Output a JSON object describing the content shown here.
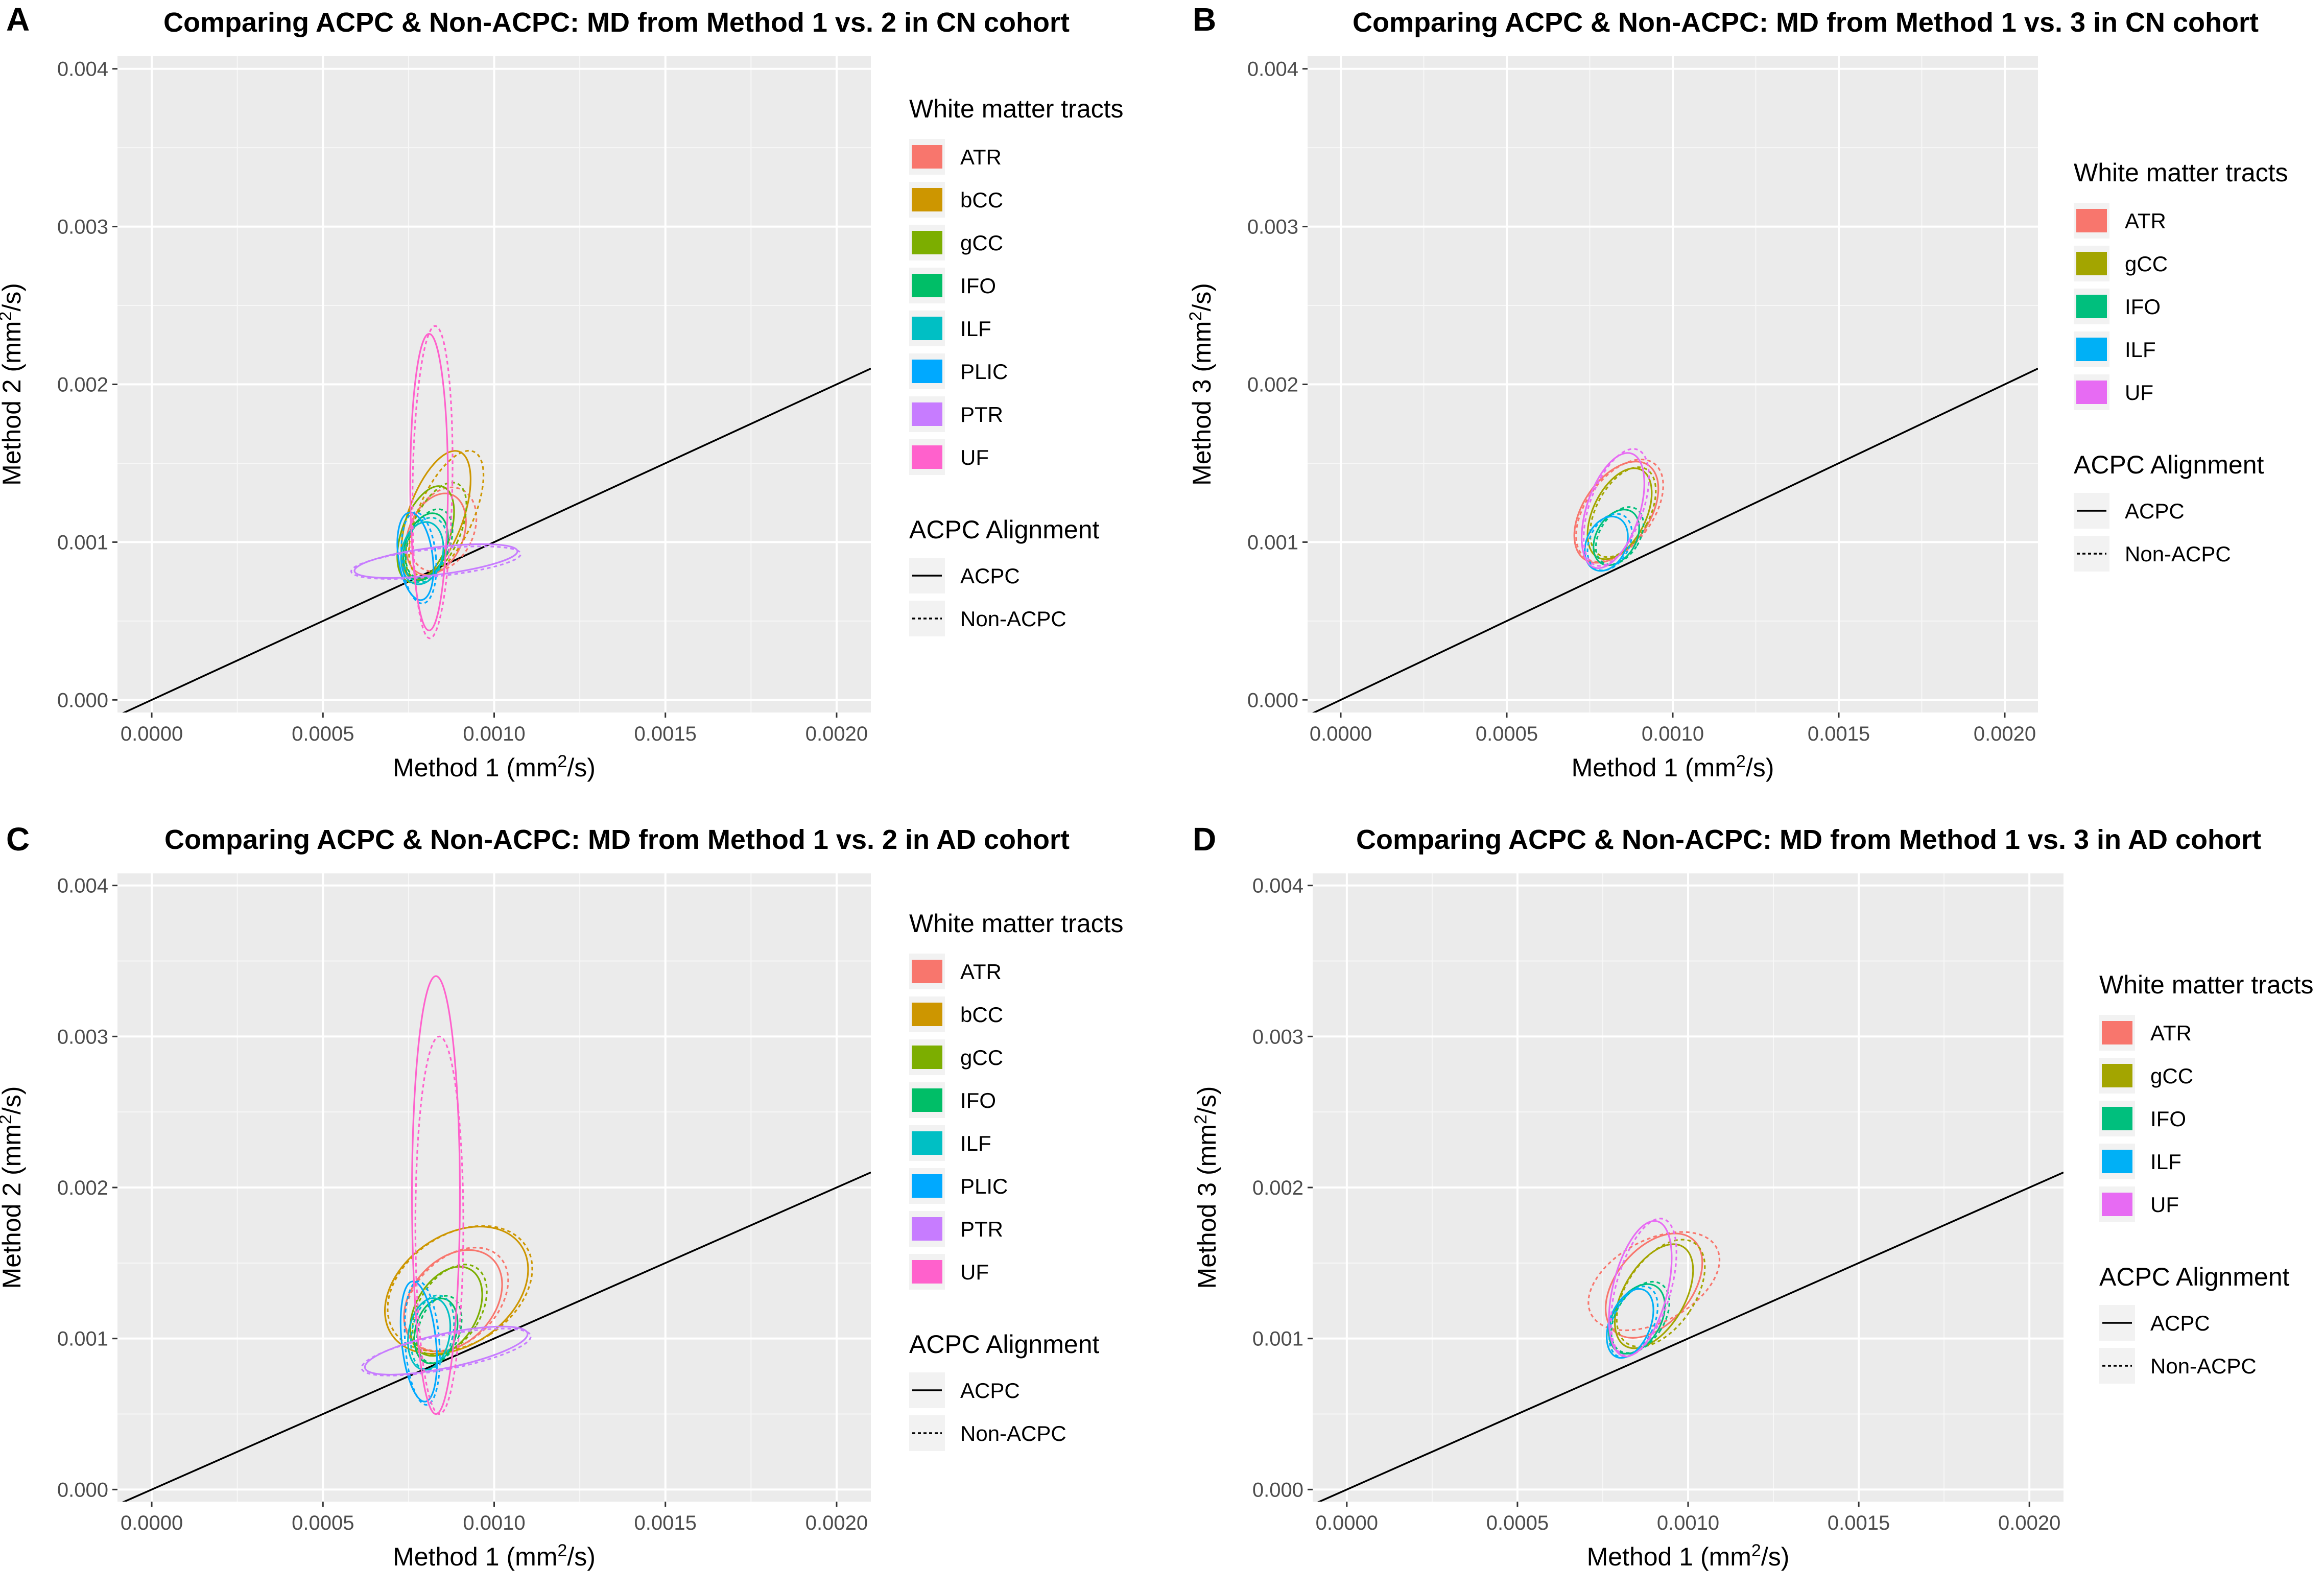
{
  "chart_data": [
    {
      "panel": "A",
      "type": "scatter",
      "title": "Comparing ACPC & Non-ACPC: MD from Method 1 vs. 2 in CN cohort",
      "xlabel": "Method 1",
      "ylabel": "Method 2",
      "unit_base": "mm",
      "unit_sup": "2",
      "unit_tail": "/s",
      "xlim": [
        -0.0001,
        0.0021
      ],
      "ylim": [
        -8e-05,
        0.00408
      ],
      "xticks": [
        "0.0000",
        "0.0005",
        "0.0010",
        "0.0015",
        "0.0020"
      ],
      "yticks": [
        "0.000",
        "0.001",
        "0.002",
        "0.003",
        "0.004"
      ],
      "identity_line": {
        "slope": 1,
        "intercept": 0
      },
      "legend_title": "White matter tracts",
      "legend_items": [
        {
          "label": "ATR",
          "color": "#F8766D"
        },
        {
          "label": "bCC",
          "color": "#CD9600"
        },
        {
          "label": "gCC",
          "color": "#7CAE00"
        },
        {
          "label": "IFO",
          "color": "#00BE67"
        },
        {
          "label": "ILF",
          "color": "#00BFC4"
        },
        {
          "label": "PLIC",
          "color": "#00A9FF"
        },
        {
          "label": "PTR",
          "color": "#C77CFF"
        },
        {
          "label": "UF",
          "color": "#FF61CC"
        }
      ],
      "linetype_title": "ACPC Alignment",
      "linetype_items": [
        "ACPC",
        "Non-ACPC"
      ],
      "ellipses": [
        {
          "tract": "ATR",
          "align": "ACPC",
          "cx": 0.00083,
          "cy": 0.00105,
          "rx": 8e-05,
          "ry": 0.00027,
          "angle": 22
        },
        {
          "tract": "ATR",
          "align": "Non-ACPC",
          "cx": 0.00085,
          "cy": 0.00108,
          "rx": 9e-05,
          "ry": 0.00028,
          "angle": 25
        },
        {
          "tract": "bCC",
          "align": "ACPC",
          "cx": 0.00083,
          "cy": 0.00117,
          "rx": 8e-05,
          "ry": 0.00043,
          "angle": 20
        },
        {
          "tract": "bCC",
          "align": "Non-ACPC",
          "cx": 0.00086,
          "cy": 0.00118,
          "rx": 8e-05,
          "ry": 0.00043,
          "angle": 24
        },
        {
          "tract": "gCC",
          "align": "ACPC",
          "cx": 0.0008,
          "cy": 0.00105,
          "rx": 7e-05,
          "ry": 0.00032,
          "angle": 20
        },
        {
          "tract": "gCC",
          "align": "Non-ACPC",
          "cx": 0.00083,
          "cy": 0.00107,
          "rx": 7e-05,
          "ry": 0.00033,
          "angle": 24
        },
        {
          "tract": "IFO",
          "align": "ACPC",
          "cx": 0.0008,
          "cy": 0.00097,
          "rx": 6e-05,
          "ry": 0.00022,
          "angle": 18
        },
        {
          "tract": "IFO",
          "align": "Non-ACPC",
          "cx": 0.00081,
          "cy": 0.00099,
          "rx": 6e-05,
          "ry": 0.00023,
          "angle": 22
        },
        {
          "tract": "ILF",
          "align": "ACPC",
          "cx": 0.00079,
          "cy": 0.00093,
          "rx": 6e-05,
          "ry": 0.0002,
          "angle": 12
        },
        {
          "tract": "ILF",
          "align": "Non-ACPC",
          "cx": 0.0008,
          "cy": 0.00095,
          "rx": 6e-05,
          "ry": 0.00021,
          "angle": 16
        },
        {
          "tract": "PLIC",
          "align": "ACPC",
          "cx": 0.00077,
          "cy": 0.00091,
          "rx": 5e-05,
          "ry": 0.00028,
          "angle": -8
        },
        {
          "tract": "PLIC",
          "align": "Non-ACPC",
          "cx": 0.00078,
          "cy": 0.0009,
          "rx": 5e-05,
          "ry": 0.00029,
          "angle": -5
        },
        {
          "tract": "PTR",
          "align": "ACPC",
          "cx": 0.00083,
          "cy": 0.00088,
          "rx": 4e-05,
          "ry": 0.00052,
          "angle": 83
        },
        {
          "tract": "PTR",
          "align": "Non-ACPC",
          "cx": 0.00083,
          "cy": 0.00087,
          "rx": 4e-05,
          "ry": 0.00054,
          "angle": 84
        },
        {
          "tract": "UF",
          "align": "ACPC",
          "cx": 0.00081,
          "cy": 0.00138,
          "rx": 5.5e-05,
          "ry": 0.00094,
          "angle": 0
        },
        {
          "tract": "UF",
          "align": "Non-ACPC",
          "cx": 0.00082,
          "cy": 0.00138,
          "rx": 5.8e-05,
          "ry": 0.00099,
          "angle": 1
        }
      ]
    },
    {
      "panel": "B",
      "type": "scatter",
      "title": "Comparing ACPC & Non-ACPC: MD from Method 1 vs. 3 in CN cohort",
      "xlabel": "Method 1",
      "ylabel": "Method 3",
      "unit_base": "mm",
      "unit_sup": "2",
      "unit_tail": "/s",
      "xlim": [
        -0.0001,
        0.0021
      ],
      "ylim": [
        -8e-05,
        0.00408
      ],
      "xticks": [
        "0.0000",
        "0.0005",
        "0.0010",
        "0.0015",
        "0.0020"
      ],
      "yticks": [
        "0.000",
        "0.001",
        "0.002",
        "0.003",
        "0.004"
      ],
      "identity_line": {
        "slope": 1,
        "intercept": 0
      },
      "legend_title": "White matter tracts",
      "legend_items": [
        {
          "label": "ATR",
          "color": "#F8766D"
        },
        {
          "label": "gCC",
          "color": "#A3A500"
        },
        {
          "label": "IFO",
          "color": "#00BF7D"
        },
        {
          "label": "ILF",
          "color": "#00B0F6"
        },
        {
          "label": "UF",
          "color": "#E76BF3"
        }
      ],
      "linetype_title": "ACPC Alignment",
      "linetype_items": [
        "ACPC",
        "Non-ACPC"
      ],
      "ellipses": [
        {
          "tract": "ATR",
          "align": "ACPC",
          "cx": 0.00083,
          "cy": 0.00119,
          "rx": 0.0001,
          "ry": 0.00036,
          "angle": 34
        },
        {
          "tract": "ATR",
          "align": "Non-ACPC",
          "cx": 0.00084,
          "cy": 0.0012,
          "rx": 0.0001,
          "ry": 0.00037,
          "angle": 36
        },
        {
          "tract": "gCC",
          "align": "ACPC",
          "cx": 0.00084,
          "cy": 0.00118,
          "rx": 8e-05,
          "ry": 0.00031,
          "angle": 26
        },
        {
          "tract": "gCC",
          "align": "Non-ACPC",
          "cx": 0.00085,
          "cy": 0.00119,
          "rx": 8e-05,
          "ry": 0.00031,
          "angle": 28
        },
        {
          "tract": "IFO",
          "align": "ACPC",
          "cx": 0.00083,
          "cy": 0.00103,
          "rx": 6e-05,
          "ry": 0.00019,
          "angle": 30
        },
        {
          "tract": "IFO",
          "align": "Non-ACPC",
          "cx": 0.00084,
          "cy": 0.00104,
          "rx": 6e-05,
          "ry": 0.0002,
          "angle": 32
        },
        {
          "tract": "ILF",
          "align": "ACPC",
          "cx": 0.0008,
          "cy": 0.00099,
          "rx": 6e-05,
          "ry": 0.00018,
          "angle": 24
        },
        {
          "tract": "ILF",
          "align": "Non-ACPC",
          "cx": 0.00081,
          "cy": 0.001,
          "rx": 6e-05,
          "ry": 0.00019,
          "angle": 26
        },
        {
          "tract": "UF",
          "align": "ACPC",
          "cx": 0.00082,
          "cy": 0.0012,
          "rx": 8e-05,
          "ry": 0.00038,
          "angle": 18
        },
        {
          "tract": "UF",
          "align": "Non-ACPC",
          "cx": 0.00083,
          "cy": 0.00122,
          "rx": 8e-05,
          "ry": 0.00039,
          "angle": 20
        }
      ]
    },
    {
      "panel": "C",
      "type": "scatter",
      "title": "Comparing ACPC & Non-ACPC: MD from Method 1 vs. 2 in AD cohort",
      "xlabel": "Method 1",
      "ylabel": "Method 2",
      "unit_base": "mm",
      "unit_sup": "2",
      "unit_tail": "/s",
      "xlim": [
        -0.0001,
        0.0021
      ],
      "ylim": [
        -8e-05,
        0.00408
      ],
      "xticks": [
        "0.0000",
        "0.0005",
        "0.0010",
        "0.0015",
        "0.0020"
      ],
      "yticks": [
        "0.000",
        "0.001",
        "0.002",
        "0.003",
        "0.004"
      ],
      "identity_line": {
        "slope": 1,
        "intercept": 0
      },
      "legend_title": "White matter tracts",
      "legend_items": [
        {
          "label": "ATR",
          "color": "#F8766D"
        },
        {
          "label": "bCC",
          "color": "#CD9600"
        },
        {
          "label": "gCC",
          "color": "#7CAE00"
        },
        {
          "label": "IFO",
          "color": "#00BE67"
        },
        {
          "label": "ILF",
          "color": "#00BFC4"
        },
        {
          "label": "PLIC",
          "color": "#00A9FF"
        },
        {
          "label": "PTR",
          "color": "#C77CFF"
        },
        {
          "label": "UF",
          "color": "#FF61CC"
        }
      ],
      "linetype_title": "ACPC Alignment",
      "linetype_items": [
        "ACPC",
        "Non-ACPC"
      ],
      "ellipses": [
        {
          "tract": "ATR",
          "align": "ACPC",
          "cx": 0.00088,
          "cy": 0.00125,
          "rx": 0.00012,
          "ry": 0.00038,
          "angle": 42
        },
        {
          "tract": "ATR",
          "align": "Non-ACPC",
          "cx": 0.00089,
          "cy": 0.00126,
          "rx": 0.00012,
          "ry": 0.0004,
          "angle": 45
        },
        {
          "tract": "bCC",
          "align": "ACPC",
          "cx": 0.00089,
          "cy": 0.00132,
          "rx": 0.00016,
          "ry": 0.00052,
          "angle": 55
        },
        {
          "tract": "bCC",
          "align": "Non-ACPC",
          "cx": 0.0009,
          "cy": 0.00133,
          "rx": 0.00016,
          "ry": 0.00052,
          "angle": 57
        },
        {
          "tract": "gCC",
          "align": "ACPC",
          "cx": 0.00086,
          "cy": 0.00118,
          "rx": 9e-05,
          "ry": 0.00032,
          "angle": 30
        },
        {
          "tract": "gCC",
          "align": "Non-ACPC",
          "cx": 0.00087,
          "cy": 0.00119,
          "rx": 9e-05,
          "ry": 0.00033,
          "angle": 32
        },
        {
          "tract": "IFO",
          "align": "ACPC",
          "cx": 0.00083,
          "cy": 0.00105,
          "rx": 6e-05,
          "ry": 0.00022,
          "angle": 15
        },
        {
          "tract": "IFO",
          "align": "Non-ACPC",
          "cx": 0.00084,
          "cy": 0.00106,
          "rx": 6e-05,
          "ry": 0.00023,
          "angle": 18
        },
        {
          "tract": "ILF",
          "align": "ACPC",
          "cx": 0.00081,
          "cy": 0.00103,
          "rx": 6e-05,
          "ry": 0.00024,
          "angle": 10
        },
        {
          "tract": "ILF",
          "align": "Non-ACPC",
          "cx": 0.00082,
          "cy": 0.00104,
          "rx": 6e-05,
          "ry": 0.00025,
          "angle": 12
        },
        {
          "tract": "PLIC",
          "align": "ACPC",
          "cx": 0.00078,
          "cy": 0.00098,
          "rx": 5e-05,
          "ry": 0.0004,
          "angle": -6
        },
        {
          "tract": "PLIC",
          "align": "Non-ACPC",
          "cx": 0.00079,
          "cy": 0.00097,
          "rx": 5e-05,
          "ry": 0.00041,
          "angle": -4
        },
        {
          "tract": "PTR",
          "align": "ACPC",
          "cx": 0.00086,
          "cy": 0.00092,
          "rx": 5e-05,
          "ry": 0.00055,
          "angle": 78
        },
        {
          "tract": "PTR",
          "align": "Non-ACPC",
          "cx": 0.00086,
          "cy": 0.00091,
          "rx": 5e-05,
          "ry": 0.00057,
          "angle": 79
        },
        {
          "tract": "UF",
          "align": "ACPC",
          "cx": 0.00083,
          "cy": 0.00195,
          "rx": 7e-05,
          "ry": 0.00145,
          "angle": 0
        },
        {
          "tract": "UF",
          "align": "Non-ACPC",
          "cx": 0.00084,
          "cy": 0.00175,
          "rx": 7e-05,
          "ry": 0.00125,
          "angle": 0
        }
      ]
    },
    {
      "panel": "D",
      "type": "scatter",
      "title": "Comparing ACPC & Non-ACPC: MD from Method 1 vs. 3 in AD cohort",
      "xlabel": "Method 1",
      "ylabel": "Method 3",
      "unit_base": "mm",
      "unit_sup": "2",
      "unit_tail": "/s",
      "xlim": [
        -0.0001,
        0.0021
      ],
      "ylim": [
        -8e-05,
        0.00408
      ],
      "xticks": [
        "0.0000",
        "0.0005",
        "0.0010",
        "0.0015",
        "0.0020"
      ],
      "yticks": [
        "0.000",
        "0.001",
        "0.002",
        "0.003",
        "0.004"
      ],
      "identity_line": {
        "slope": 1,
        "intercept": 0
      },
      "legend_title": "White matter tracts",
      "legend_items": [
        {
          "label": "ATR",
          "color": "#F8766D"
        },
        {
          "label": "gCC",
          "color": "#A3A500"
        },
        {
          "label": "IFO",
          "color": "#00BF7D"
        },
        {
          "label": "ILF",
          "color": "#00B0F6"
        },
        {
          "label": "UF",
          "color": "#E76BF3"
        }
      ],
      "linetype_title": "ACPC Alignment",
      "linetype_items": [
        "ACPC",
        "Non-ACPC"
      ],
      "ellipses": [
        {
          "tract": "ATR",
          "align": "ACPC",
          "cx": 0.0009,
          "cy": 0.00135,
          "rx": 0.00011,
          "ry": 0.0004,
          "angle": 40
        },
        {
          "tract": "ATR",
          "align": "Non-ACPC",
          "cx": 0.0009,
          "cy": 0.00138,
          "rx": 0.00012,
          "ry": 0.00047,
          "angle": 62
        },
        {
          "tract": "gCC",
          "align": "ACPC",
          "cx": 0.0009,
          "cy": 0.00128,
          "rx": 9e-05,
          "ry": 0.00038,
          "angle": 30
        },
        {
          "tract": "gCC",
          "align": "Non-ACPC",
          "cx": 0.00092,
          "cy": 0.0013,
          "rx": 0.0001,
          "ry": 0.0004,
          "angle": 34
        },
        {
          "tract": "IFO",
          "align": "ACPC",
          "cx": 0.00085,
          "cy": 0.00113,
          "rx": 7e-05,
          "ry": 0.00025,
          "angle": 30
        },
        {
          "tract": "IFO",
          "align": "Non-ACPC",
          "cx": 0.00086,
          "cy": 0.00114,
          "rx": 7e-05,
          "ry": 0.00026,
          "angle": 32
        },
        {
          "tract": "ILF",
          "align": "ACPC",
          "cx": 0.00083,
          "cy": 0.0011,
          "rx": 6e-05,
          "ry": 0.00024,
          "angle": 22
        },
        {
          "tract": "ILF",
          "align": "Non-ACPC",
          "cx": 0.00084,
          "cy": 0.00111,
          "rx": 6e-05,
          "ry": 0.00025,
          "angle": 24
        },
        {
          "tract": "UF",
          "align": "ACPC",
          "cx": 0.00086,
          "cy": 0.00133,
          "rx": 8e-05,
          "ry": 0.00046,
          "angle": 14
        },
        {
          "tract": "UF",
          "align": "Non-ACPC",
          "cx": 0.00087,
          "cy": 0.00134,
          "rx": 8e-05,
          "ry": 0.00047,
          "angle": 16
        }
      ]
    }
  ]
}
